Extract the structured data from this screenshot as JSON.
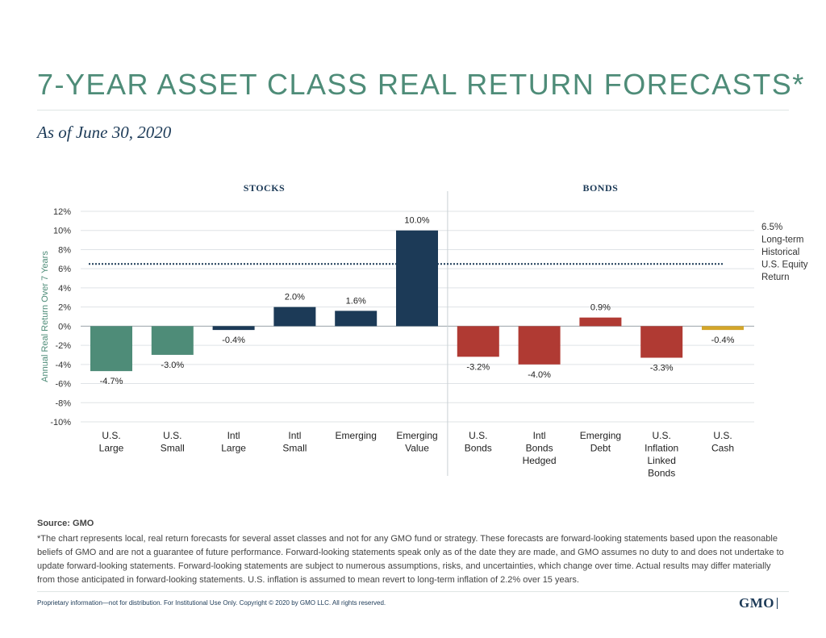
{
  "header": {
    "title": "7-YEAR ASSET CLASS REAL RETURN FORECASTS*",
    "subtitle": "As of June 30, 2020"
  },
  "chart_data": {
    "type": "bar",
    "title": "",
    "ylabel": "Annual Real Return Over 7 Years",
    "ylim": [
      -10,
      12
    ],
    "yticks": [
      12,
      10,
      8,
      6,
      4,
      2,
      0,
      -2,
      -4,
      -6,
      -8,
      -10
    ],
    "ytick_labels": [
      "12%",
      "10%",
      "8%",
      "6%",
      "4%",
      "2%",
      "0%",
      "-2%",
      "-4%",
      "-6%",
      "-8%",
      "-10%"
    ],
    "grid": true,
    "groups": [
      {
        "name": "STOCKS",
        "start": 0,
        "end": 5
      },
      {
        "name": "BONDS",
        "start": 6,
        "end": 10
      }
    ],
    "categories": [
      [
        "U.S.",
        "Large"
      ],
      [
        "U.S.",
        "Small"
      ],
      [
        "Intl",
        "Large"
      ],
      [
        "Intl",
        "Small"
      ],
      [
        "Emerging"
      ],
      [
        "Emerging",
        "Value"
      ],
      [
        "U.S.",
        "Bonds"
      ],
      [
        "Intl",
        "Bonds",
        "Hedged"
      ],
      [
        "Emerging",
        "Debt"
      ],
      [
        "U.S.",
        "Inflation",
        "Linked",
        "Bonds"
      ],
      [
        "U.S.",
        "Cash"
      ]
    ],
    "values": [
      -4.7,
      -3.0,
      -0.4,
      2.0,
      1.6,
      10.0,
      -3.2,
      -4.0,
      0.9,
      -3.3,
      -0.4
    ],
    "value_labels": [
      "-4.7%",
      "-3.0%",
      "-0.4%",
      "2.0%",
      "1.6%",
      "10.0%",
      "-3.2%",
      "-4.0%",
      "0.9%",
      "-3.3%",
      "-0.4%"
    ],
    "bar_colors": [
      "#4e8c78",
      "#4e8c78",
      "#1c3a57",
      "#1c3a57",
      "#1c3a57",
      "#1c3a57",
      "#b03a33",
      "#b03a33",
      "#b03a33",
      "#b03a33",
      "#d4a62a"
    ],
    "reference_line": {
      "value": 6.5,
      "style": "dotted",
      "color": "#1c3a57",
      "label": [
        "6.5%",
        "Long-term",
        "Historical",
        "U.S. Equity",
        "Return"
      ]
    }
  },
  "footer": {
    "source": "Source: GMO",
    "note": "*The chart represents local, real return forecasts for several asset classes and not for any GMO fund or strategy. These forecasts are forward-looking statements based upon the reasonable beliefs of GMO and are not a guarantee of future performance. Forward-looking statements speak only as of the date they are made, and GMO assumes no duty to and does not undertake to update forward-looking statements. Forward-looking statements are subject to numerous assumptions, risks, and uncertainties, which change over time. Actual results may differ materially from those anticipated in forward-looking statements. U.S. inflation is assumed to mean revert to long-term inflation of 2.2% over 15 years.",
    "disclaimer": "Proprietary information—not for distribution. For Institutional Use Only. Copyright © 2020 by GMO LLC. All rights reserved.",
    "logo": "GMO"
  }
}
